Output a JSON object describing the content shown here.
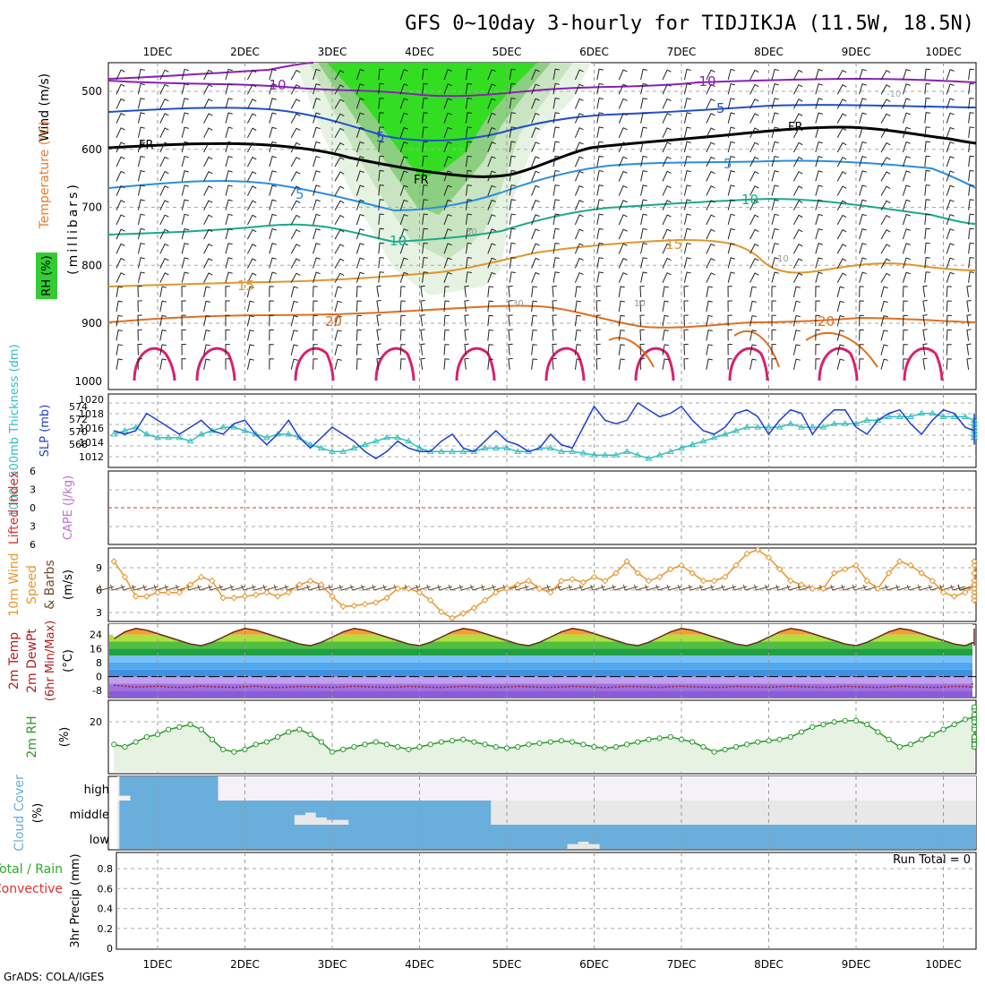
{
  "title": "GFS 0~10day 3-hourly for TIDJIKJA (11.5W, 18.5N)",
  "credit": "GrADS: COLA/IGES",
  "colors": {
    "temp_label": "#e87c30",
    "rh_green": "#33cc33",
    "wind_label": "#b050c0",
    "slp": "#1f3fd0",
    "thickness": "#33bfc0",
    "cape": "#c070d0",
    "lifted": "#e03030",
    "wind10": "#e8962e",
    "barb": "#6b4a2e",
    "rh2m": "#2c9a2c",
    "cloud": "#6aaedc",
    "precip_total": "#2caa2c",
    "precip_conv": "#e03030"
  },
  "x_ticks": [
    "1DEC",
    "2DEC",
    "3DEC",
    "4DEC",
    "5DEC",
    "6DEC",
    "7DEC",
    "8DEC",
    "9DEC",
    "10DEC"
  ],
  "panels": {
    "upper_air": {
      "ylabel_temp": "Temperature (°C)",
      "ylabel_wind": "Wind (m/s)",
      "ylabel_rh": "RH (%)",
      "ylabel_units": "(millibars)",
      "y_ticks": [
        "500",
        "600",
        "700",
        "800",
        "900",
        "1000"
      ],
      "contour_labels": [
        "-10",
        "-10",
        "5",
        "5",
        "5",
        "5",
        "FR",
        "FR",
        "FR",
        "-10",
        "10",
        "15",
        "15",
        "20",
        "20",
        "10",
        "30",
        "30",
        "10",
        "10",
        "10"
      ]
    },
    "slp_thickness": {
      "ylabel_thick": "1000~500mb Thickness (dm)",
      "ylabel_slp": "SLP (mb)",
      "left_ticks": [
        "574",
        "572",
        "570",
        "568"
      ],
      "right_ticks": [
        "1020",
        "1018",
        "1016",
        "1014",
        "1012"
      ]
    },
    "cape_li": {
      "ylabel_li": "Lifted Index",
      "ylabel_cape": "CAPE (J/kg)",
      "ticks": [
        "6",
        "3",
        "0",
        "3",
        "6"
      ]
    },
    "wind10m": {
      "ylabel1": "10m Wind",
      "ylabel2": "Speed",
      "ylabel3": "& Barbs",
      "ylabel4": "(m/s)",
      "ticks": [
        "9",
        "6",
        "3"
      ]
    },
    "temp2m": {
      "ylabel1": "2m Temp",
      "ylabel2": "2m DewPt",
      "ylabel3": "(6hr Min/Max)",
      "ylabel4": "(°C)",
      "ticks": [
        "24",
        "16",
        "8",
        "0",
        "-8"
      ]
    },
    "rh2m": {
      "ylabel1": "2m RH",
      "ylabel2": "(%)",
      "ticks": [
        "20"
      ]
    },
    "cloud": {
      "ylabel1": "Cloud Cover",
      "ylabel2": "(%)",
      "levels": [
        "high",
        "middle",
        "low"
      ]
    },
    "precip": {
      "ylabel1": "Total / Rain",
      "ylabel2": "Convective",
      "ylabel3": "3hr Precip (mm)",
      "ticks": [
        "0.8",
        "0.6",
        "0.4",
        "0.2",
        "0"
      ],
      "run_total": "Run Total = 0"
    }
  },
  "chart_data": [
    {
      "type": "line",
      "panel": "SLP / 1000-500mb thickness",
      "x_unit": "days from 00Z 1DEC",
      "x_start": -0.5,
      "x_step": 0.125,
      "series": [
        {
          "name": "SLP (mb)",
          "axis": "right",
          "ylim": [
            1012,
            1021
          ],
          "values": [
            1016.5,
            1016,
            1016.5,
            1019,
            1018,
            1017,
            1016,
            1017,
            1018,
            1016.5,
            1016,
            1017.5,
            1018,
            1016,
            1014.5,
            1016,
            1018,
            1015.5,
            1014,
            1015.5,
            1017,
            1016,
            1015,
            1013.5,
            1012.5,
            1013.5,
            1015,
            1014,
            1013.5,
            1013.5,
            1015,
            1016,
            1014,
            1013.5,
            1015,
            1016.5,
            1015,
            1014.5,
            1013.5,
            1014,
            1016,
            1014.5,
            1014,
            1017,
            1020,
            1018,
            1017.5,
            1018,
            1020.5,
            1019.5,
            1018.5,
            1019,
            1020,
            1018,
            1016.5,
            1016,
            1017,
            1019,
            1019.5,
            1018.5,
            1016,
            1018,
            1019.5,
            1019,
            1016,
            1018,
            1019.5,
            1019.5,
            1017,
            1016,
            1018,
            1019,
            1019.5,
            1017.5,
            1016,
            1018,
            1019.5,
            1019,
            1017,
            1016.5,
            1018,
            1019,
            1017,
            1015.5,
            1017.5,
            1018.5,
            1016.5,
            1015,
            1016.5,
            1017.5,
            1015.5,
            1014.5,
            1016.5,
            1017,
            1016.5,
            1016.5,
            1016.5,
            1016,
            1016
          ]
        },
        {
          "name": "1000-500mb Thickness (dm)",
          "axis": "left",
          "ylim": [
            566.5,
            575.5
          ],
          "values": [
            570.5,
            571,
            571.5,
            570.5,
            570,
            570,
            570,
            569.5,
            570.5,
            571,
            571.5,
            571.5,
            571,
            570.5,
            570,
            570.5,
            570.5,
            570,
            569,
            568.5,
            568,
            568,
            568.5,
            569,
            569.5,
            570,
            570,
            569.5,
            568.5,
            568,
            568,
            568,
            568,
            568,
            568.5,
            568.5,
            568.5,
            568,
            568,
            568.5,
            568.5,
            568,
            568,
            567.8,
            567.5,
            567.5,
            567.5,
            568,
            567.5,
            567,
            567.5,
            568,
            568.5,
            569,
            569.5,
            570,
            570.5,
            571,
            571.5,
            571.5,
            571.5,
            571.5,
            572,
            571.5,
            571.5,
            571.5,
            572,
            572,
            572,
            572.5,
            572.5,
            573,
            573,
            573,
            573.5,
            573.5,
            573,
            573,
            573,
            572.5,
            572.5,
            572.5,
            572.5,
            572,
            572,
            572,
            571.5,
            571.5,
            571.5,
            571,
            571,
            570.5,
            570.5,
            570.5,
            570,
            570,
            570,
            570,
            570
          ]
        }
      ]
    },
    {
      "type": "line",
      "panel": "10m wind speed",
      "x_unit": "days from 00Z 1DEC",
      "x_start": -0.5,
      "x_step": 0.125,
      "ylim": [
        2,
        11
      ],
      "series": [
        {
          "name": "10m Wind Speed (m/s)",
          "values": [
            9.5,
            7.5,
            5,
            5,
            5.5,
            5.5,
            5.5,
            6.5,
            7.5,
            7,
            4.8,
            4.8,
            5,
            5.2,
            5.5,
            5,
            5.5,
            6.5,
            7,
            6.5,
            5,
            3.7,
            3.8,
            4,
            4.2,
            4.8,
            6,
            6,
            5.5,
            4.5,
            3,
            2.2,
            2.8,
            3.5,
            4.5,
            5.5,
            6,
            6.5,
            7,
            6,
            5.5,
            7,
            7.2,
            6.8,
            7.5,
            7,
            8,
            9.5,
            8,
            7,
            7.5,
            8.5,
            9,
            8,
            7,
            7,
            7.5,
            9,
            10.5,
            11,
            10,
            8.5,
            7,
            6.5,
            6,
            6,
            8,
            8.5,
            9,
            7,
            6,
            8,
            9.5,
            9,
            8,
            7,
            5.5,
            5,
            5.5,
            6.5,
            7,
            7,
            8,
            9,
            9.5,
            8,
            5.5,
            5,
            4.5,
            5.5,
            6.5,
            7,
            6.5,
            5,
            4.5,
            4.5,
            5,
            6,
            6.5
          ]
        }
      ]
    },
    {
      "type": "area",
      "panel": "2m temperature / dewpoint",
      "x_unit": "days from 00Z 1DEC",
      "x_start": -0.5,
      "x_step": 0.125,
      "ylim": [
        -12,
        30
      ],
      "series": [
        {
          "name": "2m Temp (°C)",
          "values": [
            22,
            26,
            28,
            27,
            25,
            23,
            21,
            19,
            18,
            20,
            23,
            26,
            28,
            27,
            25,
            23,
            21,
            19,
            18,
            20,
            23,
            26,
            28,
            27,
            25,
            23,
            21,
            19,
            18,
            20,
            23,
            26,
            28,
            27,
            25,
            23,
            21,
            19,
            18,
            20,
            23,
            26,
            28,
            27,
            25,
            23,
            21,
            19,
            18,
            20,
            23,
            26,
            28,
            27,
            25,
            23,
            21,
            19,
            18,
            20,
            23,
            26,
            28,
            27,
            25,
            23,
            21,
            19,
            18,
            20,
            23,
            26,
            28,
            27,
            25,
            23,
            21,
            19,
            18,
            20,
            23,
            26,
            28,
            27,
            25,
            23,
            21,
            19,
            18,
            20,
            23,
            26,
            28,
            27,
            25,
            23,
            21,
            19,
            18
          ]
        },
        {
          "name": "2m DewPt (°C)",
          "values": [
            -5,
            -5.5,
            -6,
            -5.8,
            -5.5,
            -6,
            -6.2,
            -6,
            -5.5,
            -5.8,
            -6,
            -6.2,
            -5.8,
            -5.5,
            -6,
            -6.3,
            -6,
            -5.6,
            -5.8,
            -6,
            -6.2,
            -5.9,
            -5.5,
            -5.8,
            -6,
            -6.2,
            -6,
            -5.6,
            -5.8,
            -6.1,
            -6.2,
            -5.9,
            -5.5,
            -5.8,
            -6,
            -6.2,
            -5.9,
            -5.6,
            -5.8,
            -6,
            -6.2,
            -5.9,
            -5.5,
            -5.8,
            -6,
            -6.3,
            -6,
            -5.6,
            -5.8,
            -6,
            -6.2,
            -5.8,
            -5.5,
            -5.8,
            -6,
            -6.2,
            -6,
            -5.6,
            -5.8,
            -6,
            -6.1,
            -5.8,
            -5.5,
            -5.8,
            -6,
            -6.2,
            -6,
            -5.6,
            -5.8,
            -6,
            -6.2,
            -5.9,
            -5.5,
            -5.8,
            -6,
            -6.2,
            -6,
            -5.6,
            -5.8,
            -6,
            -6.2,
            -5.9,
            -5.5,
            -5.8,
            -6,
            -6.2,
            -6,
            -5.6,
            -5.8,
            -6,
            -6.1,
            -5.8,
            -5.5,
            -5,
            -4.5,
            -4,
            -3.5,
            -3,
            -2.5
          ]
        }
      ]
    },
    {
      "type": "line",
      "panel": "2m relative humidity",
      "x_unit": "days from 00Z 1DEC",
      "x_start": -0.5,
      "x_step": 0.125,
      "ylim": [
        0,
        28
      ],
      "series": [
        {
          "name": "2m RH (%)",
          "values": [
            11,
            10,
            12,
            14,
            15,
            17,
            18,
            19,
            17,
            13,
            9,
            8,
            9,
            11,
            12,
            14,
            16,
            17,
            15,
            12,
            8,
            9,
            10,
            11,
            12,
            11,
            10,
            9,
            10,
            11,
            12,
            12.5,
            13,
            12,
            11,
            10,
            9.5,
            10,
            11,
            11.5,
            12,
            12.5,
            12,
            11,
            10,
            9.5,
            10,
            11,
            12,
            13,
            13.5,
            14,
            13,
            12,
            10,
            8,
            9,
            10,
            11,
            12,
            12.5,
            13,
            14,
            16,
            18,
            19,
            20,
            20.5,
            20.5,
            19,
            16,
            13,
            10,
            11,
            13,
            15,
            17,
            19,
            21,
            22,
            21,
            18,
            14,
            11,
            10,
            11,
            12,
            13,
            14,
            13,
            11,
            10,
            11,
            14,
            17,
            20,
            23,
            25,
            26
          ]
        }
      ]
    },
    {
      "type": "bar",
      "panel": "cloud cover",
      "x_unit": "days from 00Z 1DEC",
      "x_start": -0.5,
      "x_step": 0.125,
      "ylim": [
        0,
        100
      ],
      "series": [
        {
          "name": "high",
          "values": [
            60,
            80,
            100,
            100,
            100,
            100,
            100,
            100,
            100,
            100,
            0,
            0,
            0,
            0,
            0,
            0,
            0,
            0,
            0,
            0,
            0,
            0,
            0,
            0,
            0,
            0,
            0,
            0,
            0,
            0,
            0,
            0,
            0,
            0,
            0,
            0,
            0,
            0,
            0,
            0,
            0,
            0,
            0,
            0,
            0,
            0,
            0,
            0,
            0,
            0,
            0,
            0,
            0,
            0,
            0,
            0,
            0,
            0,
            0,
            0,
            0,
            0,
            0,
            0,
            0,
            0,
            0,
            0,
            0,
            0,
            0,
            0,
            0,
            0,
            0,
            0,
            0,
            0,
            0,
            0,
            0,
            0,
            0,
            0,
            0,
            0,
            0,
            0,
            0,
            0,
            0,
            0,
            0,
            0,
            0,
            0,
            0,
            0,
            0
          ]
        },
        {
          "name": "middle",
          "values": [
            100,
            100,
            100,
            100,
            100,
            100,
            100,
            100,
            100,
            100,
            100,
            100,
            100,
            100,
            100,
            100,
            100,
            60,
            50,
            70,
            80,
            80,
            100,
            100,
            100,
            100,
            100,
            100,
            100,
            100,
            100,
            100,
            100,
            100,
            100,
            0,
            0,
            0,
            0,
            0,
            0,
            0,
            0,
            0,
            0,
            0,
            0,
            0,
            0,
            0,
            0,
            0,
            0,
            0,
            0,
            0,
            0,
            0,
            0,
            0,
            0,
            0,
            0,
            0,
            0,
            0,
            0,
            0,
            0,
            0,
            0,
            0,
            0,
            0,
            0,
            0,
            0,
            0,
            0,
            0,
            0,
            0,
            0,
            0,
            0,
            0,
            0,
            0,
            0,
            0,
            0,
            0,
            0,
            0,
            0,
            0,
            0,
            0,
            0
          ]
        },
        {
          "name": "low",
          "values": [
            100,
            100,
            100,
            100,
            100,
            100,
            100,
            100,
            100,
            100,
            100,
            100,
            100,
            100,
            100,
            100,
            100,
            100,
            100,
            100,
            100,
            100,
            100,
            100,
            100,
            100,
            100,
            100,
            100,
            100,
            100,
            100,
            100,
            100,
            100,
            100,
            100,
            100,
            100,
            100,
            100,
            100,
            80,
            70,
            80,
            100,
            100,
            100,
            100,
            100,
            100,
            100,
            100,
            100,
            100,
            100,
            100,
            100,
            100,
            100,
            100,
            100,
            100,
            100,
            100,
            100,
            100,
            100,
            100,
            100,
            100,
            100,
            100,
            100,
            100,
            100,
            100,
            100,
            100,
            100,
            100,
            100,
            100,
            100,
            100,
            100,
            100,
            100,
            100,
            100,
            100,
            100,
            100,
            100,
            100,
            100,
            100,
            100,
            100
          ]
        }
      ]
    },
    {
      "type": "bar",
      "panel": "3hr precipitation",
      "ylim": [
        0,
        1
      ],
      "series": [
        {
          "name": "3hr Precip (mm)",
          "values": [
            0
          ]
        }
      ]
    }
  ]
}
